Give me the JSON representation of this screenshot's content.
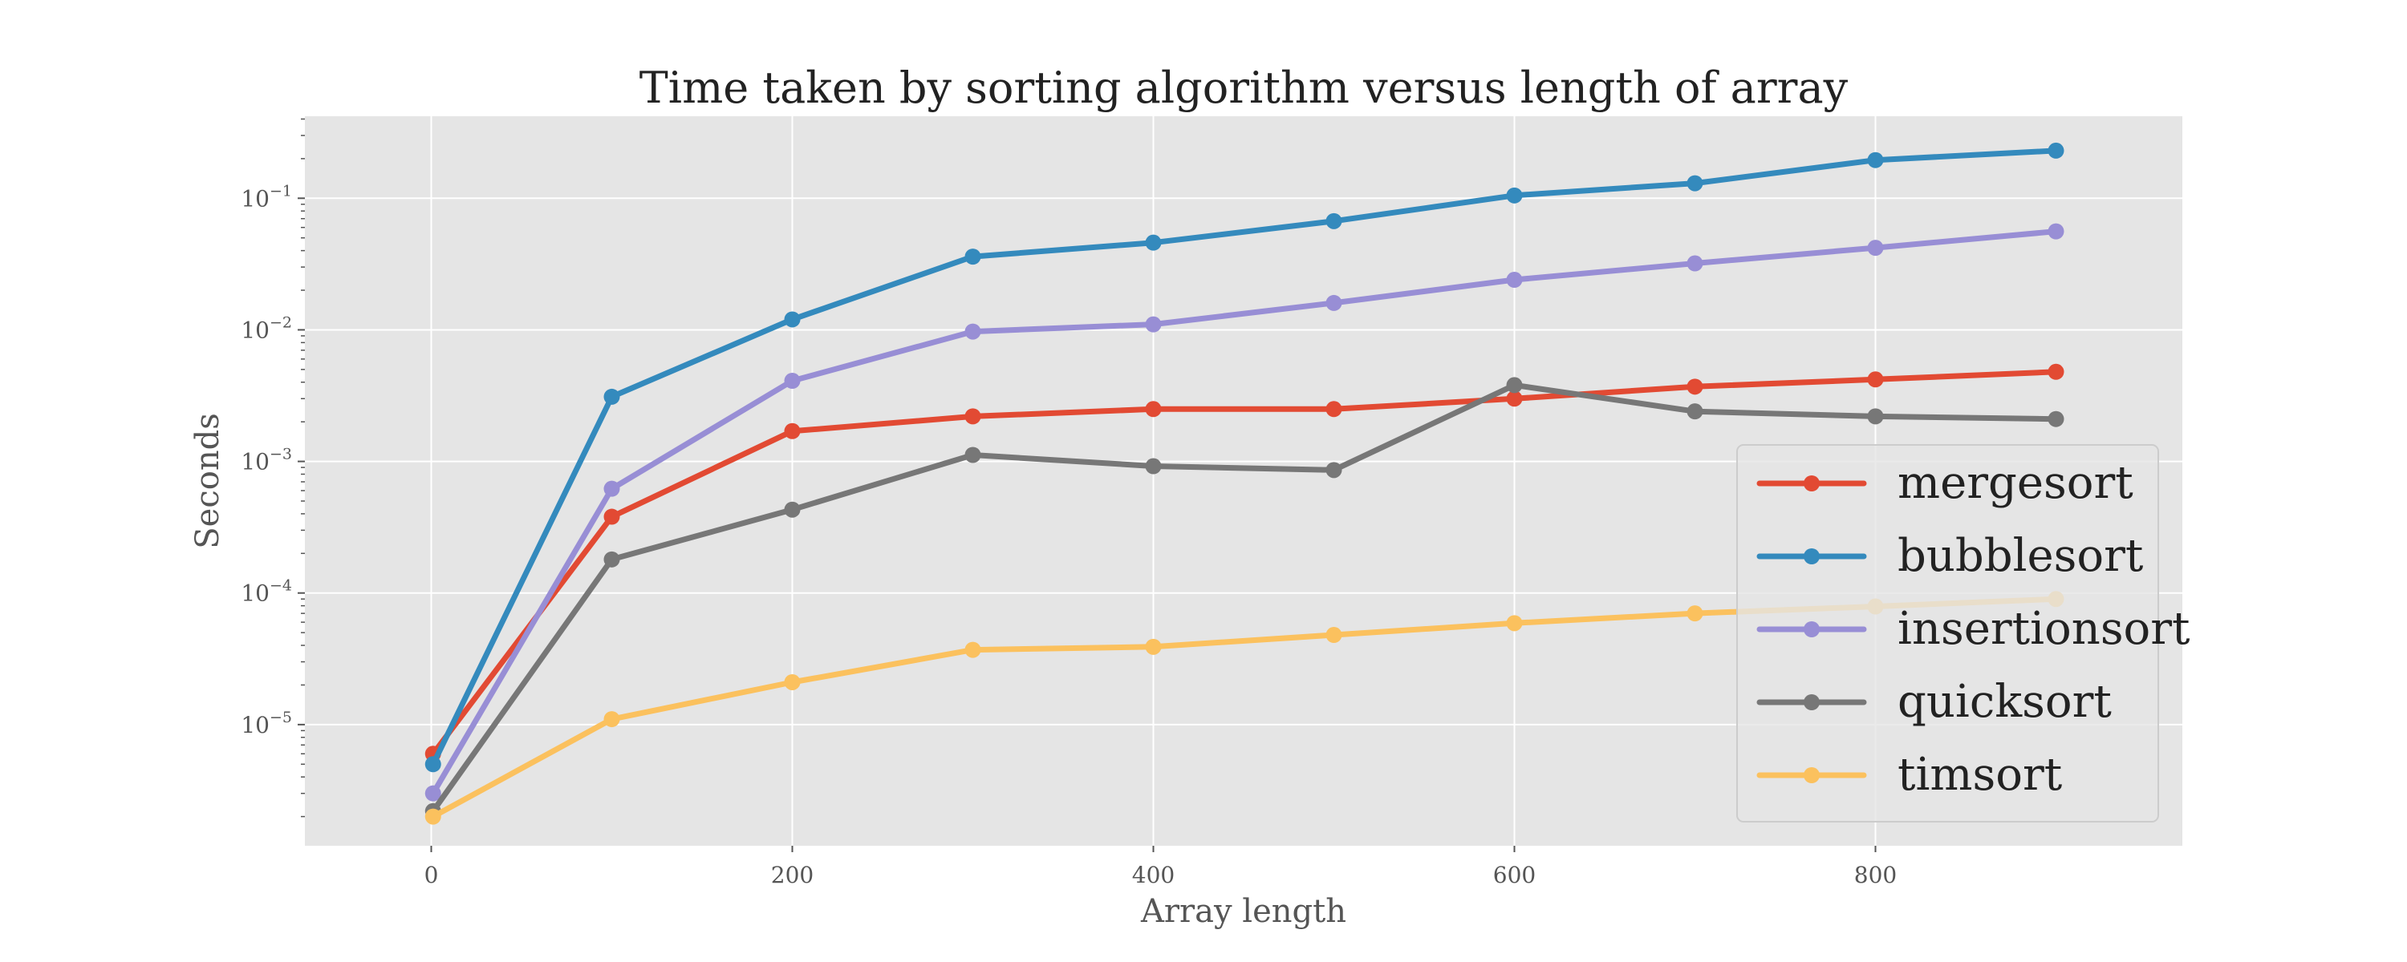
{
  "chart_data": {
    "type": "line",
    "title": "Time taken by sorting algorithm versus length of array",
    "xlabel": "Array length",
    "ylabel": "Seconds",
    "x": [
      1,
      100,
      200,
      300,
      400,
      500,
      600,
      700,
      800,
      900
    ],
    "xlim": [
      -70,
      970
    ],
    "ylim": [
      1.2e-06,
      0.42
    ],
    "yscale": "log",
    "x_ticks": [
      {
        "value": 0,
        "label": "0"
      },
      {
        "value": 200,
        "label": "200"
      },
      {
        "value": 400,
        "label": "400"
      },
      {
        "value": 600,
        "label": "600"
      },
      {
        "value": 800,
        "label": "800"
      }
    ],
    "y_ticks": [
      {
        "value": 1e-05,
        "base": "10",
        "exp": "−5"
      },
      {
        "value": 0.0001,
        "base": "10",
        "exp": "−4"
      },
      {
        "value": 0.001,
        "base": "10",
        "exp": "−3"
      },
      {
        "value": 0.01,
        "base": "10",
        "exp": "−2"
      },
      {
        "value": 0.1,
        "base": "10",
        "exp": "−1"
      }
    ],
    "grid": true,
    "background": "#e5e5e5",
    "legend_position": "lower-right",
    "series": [
      {
        "name": "mergesort",
        "color": "#e24a33",
        "values": [
          6e-06,
          0.00038,
          0.0017,
          0.0022,
          0.0025,
          0.0025,
          0.003,
          0.0037,
          0.0042,
          0.0048
        ]
      },
      {
        "name": "bubblesort",
        "color": "#348abd",
        "values": [
          5e-06,
          0.0031,
          0.012,
          0.036,
          0.046,
          0.067,
          0.105,
          0.13,
          0.195,
          0.23
        ]
      },
      {
        "name": "insertionsort",
        "color": "#988ed5",
        "values": [
          3e-06,
          0.00062,
          0.0041,
          0.0097,
          0.011,
          0.016,
          0.024,
          0.032,
          0.042,
          0.056
        ]
      },
      {
        "name": "quicksort",
        "color": "#777777",
        "values": [
          2.2e-06,
          0.00018,
          0.00043,
          0.00112,
          0.00092,
          0.00086,
          0.0038,
          0.0024,
          0.0022,
          0.0021
        ]
      },
      {
        "name": "timsort",
        "color": "#fbc15e",
        "values": [
          2e-06,
          1.1e-05,
          2.1e-05,
          3.7e-05,
          3.9e-05,
          4.8e-05,
          5.9e-05,
          7e-05,
          7.9e-05,
          9e-05
        ]
      }
    ]
  }
}
